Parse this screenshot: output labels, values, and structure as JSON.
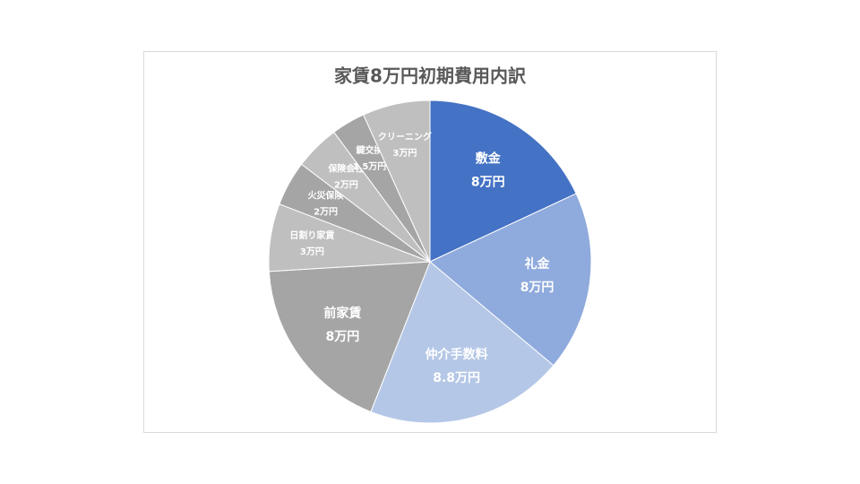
{
  "chart_data": {
    "type": "pie",
    "title": "家賃8万円初期費用内訳",
    "categories": [
      "敷金",
      "礼金",
      "仲介手数料",
      "前家賃",
      "日割り家賃",
      "火災保険",
      "保険会社",
      "鍵交換",
      "クリーニング"
    ],
    "values": [
      8,
      8,
      8.8,
      8,
      3,
      2,
      2,
      1.5,
      3
    ],
    "value_labels": [
      "8万円",
      "8万円",
      "8.8万円",
      "8万円",
      "3万円",
      "2万円",
      "2万円",
      "1.5万円",
      "3万円"
    ],
    "colors": [
      "#4472c4",
      "#8faadc",
      "#b4c7e7",
      "#a5a5a5",
      "#bfbfbf",
      "#a5a5a5",
      "#bfbfbf",
      "#a5a5a5",
      "#bfbfbf"
    ]
  }
}
